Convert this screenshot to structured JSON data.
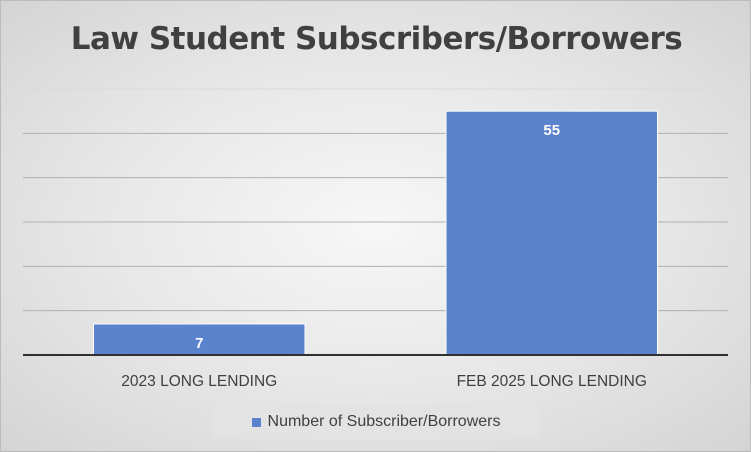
{
  "chart_data": {
    "type": "bar",
    "title": "Law Student Subscribers/Borrowers",
    "categories": [
      "2023 LONG LENDING",
      "FEB 2025 LONG LENDING"
    ],
    "series": [
      {
        "name": "Number of Subscriber/Borrowers",
        "values": [
          7,
          55
        ],
        "color": "#5b82cc"
      }
    ],
    "data_labels": [
      "7",
      "55"
    ],
    "ylim": [
      0,
      60
    ],
    "grid": true,
    "legend_position": "bottom",
    "xlabel": "",
    "ylabel": ""
  }
}
